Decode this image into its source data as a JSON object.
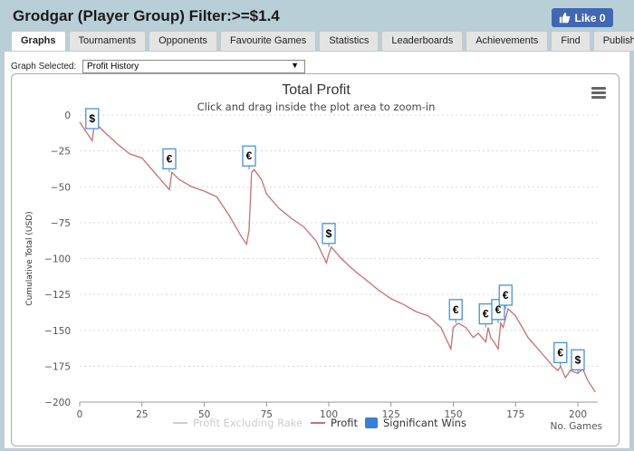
{
  "header": {
    "title": "Grodgar (Player Group) Filter:>=$1.4",
    "like_label": "Like 0"
  },
  "tabs": [
    {
      "label": "Graphs",
      "active": true
    },
    {
      "label": "Tournaments"
    },
    {
      "label": "Opponents"
    },
    {
      "label": "Favourite Games"
    },
    {
      "label": "Statistics"
    },
    {
      "label": "Leaderboards"
    },
    {
      "label": "Achievements"
    },
    {
      "label": "Find"
    },
    {
      "label": "Publish"
    }
  ],
  "graph_select": {
    "label": "Graph Selected:",
    "value": "Profit History"
  },
  "colors": {
    "profit_line": "#c87070",
    "profit_excl_rake": "#cccccc",
    "significant_wins": "#3a7fd5",
    "flag_border": "#4a90d9"
  },
  "chart_data": {
    "type": "line",
    "title": "Total Profit",
    "subtitle": "Click and drag inside the plot area to zoom-in",
    "xlabel": "No. Games",
    "ylabel": "Cumulative Total (USD)",
    "xlim": [
      0,
      208
    ],
    "ylim": [
      -200,
      0
    ],
    "xticks": [
      "0",
      "25",
      "50",
      "75",
      "100",
      "125",
      "150",
      "175",
      "200"
    ],
    "yticks": [
      "0",
      "−25",
      "−50",
      "−75",
      "−100",
      "−125",
      "−150",
      "−175",
      "−200"
    ],
    "grid": true,
    "legend_position": "bottom",
    "legend": [
      "Profit Excluding Rake",
      "Profit",
      "Significant Wins"
    ],
    "series": [
      {
        "name": "Profit",
        "points": [
          [
            0,
            -5
          ],
          [
            5,
            -18
          ],
          [
            6,
            -5
          ],
          [
            10,
            -12
          ],
          [
            15,
            -20
          ],
          [
            20,
            -27
          ],
          [
            25,
            -30
          ],
          [
            30,
            -40
          ],
          [
            35,
            -50
          ],
          [
            36,
            -52
          ],
          [
            37,
            -40
          ],
          [
            40,
            -45
          ],
          [
            45,
            -50
          ],
          [
            50,
            -53
          ],
          [
            55,
            -57
          ],
          [
            60,
            -70
          ],
          [
            65,
            -85
          ],
          [
            67,
            -90
          ],
          [
            68,
            -80
          ],
          [
            69,
            -40
          ],
          [
            70,
            -38
          ],
          [
            73,
            -45
          ],
          [
            75,
            -55
          ],
          [
            80,
            -65
          ],
          [
            85,
            -72
          ],
          [
            90,
            -78
          ],
          [
            95,
            -88
          ],
          [
            99,
            -103
          ],
          [
            100,
            -97
          ],
          [
            101,
            -92
          ],
          [
            105,
            -100
          ],
          [
            110,
            -108
          ],
          [
            115,
            -115
          ],
          [
            120,
            -122
          ],
          [
            125,
            -128
          ],
          [
            130,
            -132
          ],
          [
            135,
            -137
          ],
          [
            140,
            -140
          ],
          [
            145,
            -148
          ],
          [
            149,
            -163
          ],
          [
            150,
            -148
          ],
          [
            152,
            -145
          ],
          [
            155,
            -148
          ],
          [
            158,
            -155
          ],
          [
            160,
            -152
          ],
          [
            163,
            -158
          ],
          [
            164,
            -148
          ],
          [
            165,
            -155
          ],
          [
            167,
            -160
          ],
          [
            168,
            -163
          ],
          [
            169,
            -145
          ],
          [
            170,
            -148
          ],
          [
            172,
            -135
          ],
          [
            175,
            -140
          ],
          [
            180,
            -155
          ],
          [
            185,
            -165
          ],
          [
            190,
            -175
          ],
          [
            192,
            -178
          ],
          [
            193,
            -175
          ],
          [
            195,
            -183
          ],
          [
            197,
            -178
          ],
          [
            200,
            -180
          ],
          [
            202,
            -177
          ],
          [
            204,
            -185
          ],
          [
            207,
            -193
          ]
        ]
      }
    ],
    "significant_wins": [
      {
        "x": 5,
        "y": -2,
        "symbol": "$"
      },
      {
        "x": 36,
        "y": -40,
        "symbol": "€"
      },
      {
        "x": 68,
        "y": -38,
        "symbol": "€"
      },
      {
        "x": 100,
        "y": -92,
        "symbol": "$"
      },
      {
        "x": 151,
        "y": -145,
        "symbol": "€"
      },
      {
        "x": 163,
        "y": -148,
        "symbol": "€"
      },
      {
        "x": 168,
        "y": -145,
        "symbol": "€"
      },
      {
        "x": 171,
        "y": -135,
        "symbol": "€"
      },
      {
        "x": 193,
        "y": -175,
        "symbol": "€"
      },
      {
        "x": 200,
        "y": -180,
        "symbol": "$"
      }
    ]
  }
}
